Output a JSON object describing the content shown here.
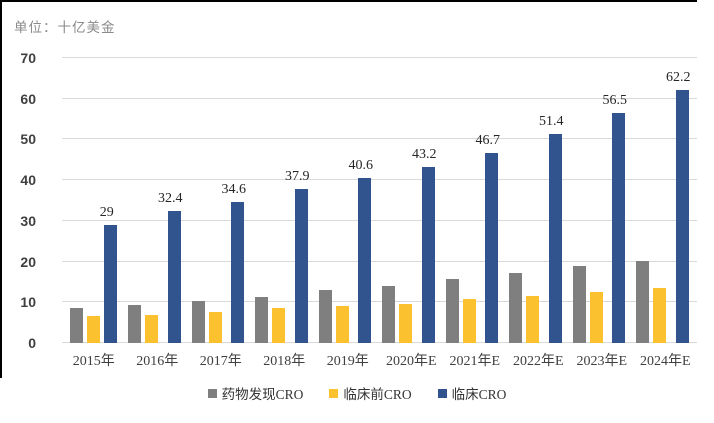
{
  "unit_label": "单位：十亿美金",
  "colors": {
    "drug_discovery": "#7f7f7f",
    "preclinical": "#fcc12e",
    "clinical": "#31548f",
    "grid": "#d9d9d9",
    "axis_text": "#3f3f3f",
    "border": "#000000",
    "background": "#ffffff"
  },
  "chart_data": {
    "type": "bar",
    "title": "",
    "unit_label": "单位：十亿美金",
    "categories": [
      "2015年",
      "2016年",
      "2017年",
      "2018年",
      "2019年",
      "2020年E",
      "2021年E",
      "2022年E",
      "2023年E",
      "2024年E"
    ],
    "series": [
      {
        "name": "药物发现CRO",
        "color_key": "drug_discovery",
        "values": [
          8.5,
          9.4,
          10.3,
          11.4,
          12.9,
          14.1,
          15.8,
          17.2,
          18.8,
          20.2
        ],
        "labeled": false
      },
      {
        "name": "临床前CRO",
        "color_key": "preclinical",
        "values": [
          6.6,
          6.9,
          7.6,
          8.5,
          9.0,
          9.7,
          10.7,
          11.6,
          12.5,
          13.4
        ],
        "labeled": false
      },
      {
        "name": "临床CRO",
        "color_key": "clinical",
        "values": [
          29,
          32.4,
          34.6,
          37.9,
          40.6,
          43.2,
          46.7,
          51.4,
          56.5,
          62.2
        ],
        "labeled": true,
        "data_labels": [
          "29",
          "32.4",
          "34.6",
          "37.9",
          "40.6",
          "43.2",
          "46.7",
          "51.4",
          "56.5",
          "62.2"
        ]
      }
    ],
    "ylim": [
      0,
      70
    ],
    "yticks": [
      0,
      10,
      20,
      30,
      40,
      50,
      60,
      70
    ],
    "grid": true,
    "legend_position": "bottom"
  }
}
